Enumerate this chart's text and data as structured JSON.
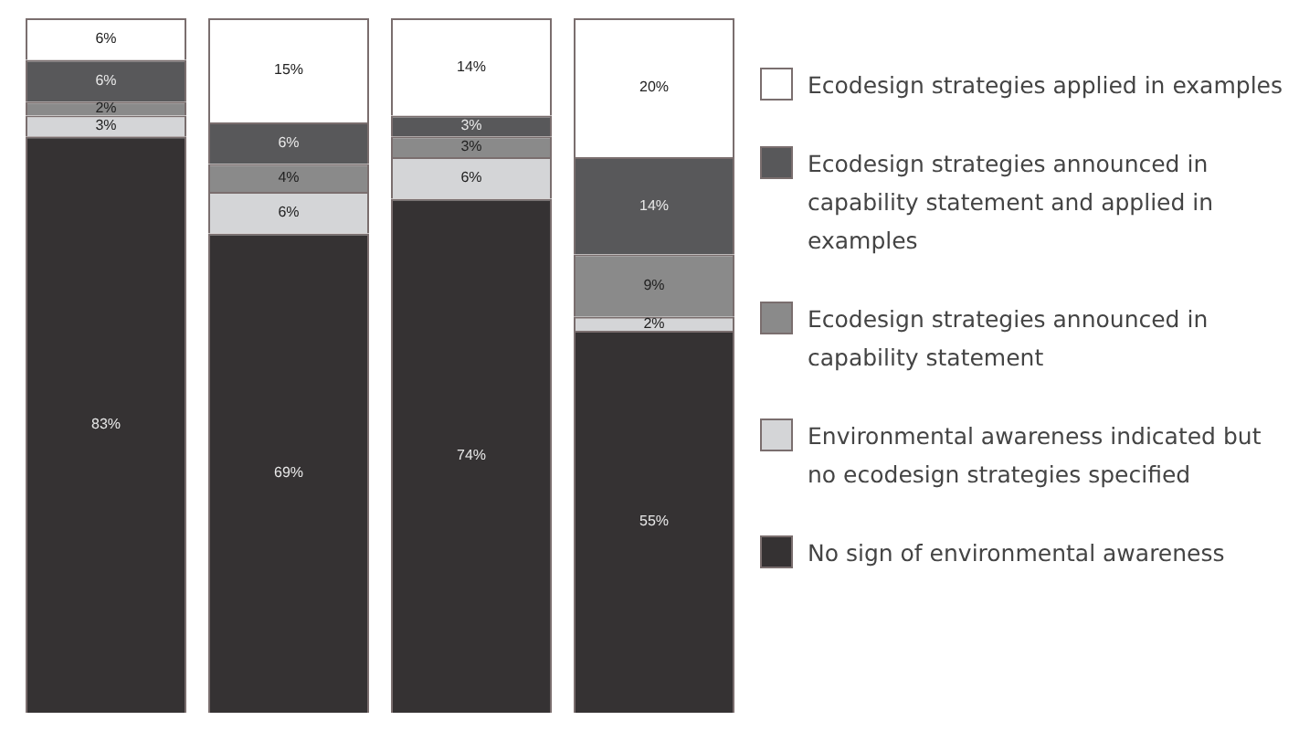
{
  "chart_data": {
    "type": "bar",
    "stacked": true,
    "categories": [
      null,
      null,
      null,
      null
    ],
    "ylim": [
      0,
      100
    ],
    "legend": "right",
    "series": [
      {
        "name": "No sign of environmental awareness",
        "color": "#353233",
        "values": [
          83,
          69,
          74,
          55
        ],
        "value_labels": [
          "83%",
          "69%",
          "74%",
          "55%"
        ]
      },
      {
        "name": "Environmental awareness indicated but no ecodesign strategies specified",
        "color": "#d4d5d7",
        "values": [
          3,
          6,
          6,
          2
        ],
        "value_labels": [
          "3%",
          "6%",
          "6%",
          "2%"
        ]
      },
      {
        "name": "Ecodesign strategies announced in capability statement",
        "color": "#8a8a8a",
        "values": [
          2,
          4,
          3,
          9
        ],
        "value_labels": [
          "2%",
          "4%",
          "3%",
          "9%"
        ]
      },
      {
        "name": "Ecodesign strategies announced in capability statement and applied in examples",
        "color": "#58585a",
        "values": [
          6,
          6,
          3,
          14
        ],
        "value_labels": [
          "6%",
          "6%",
          "3%",
          "14%"
        ]
      },
      {
        "name": "Ecodesign strategies applied in examples",
        "color": "#ffffff",
        "values": [
          6,
          15,
          14,
          20
        ],
        "value_labels": [
          "6%",
          "15%",
          "14%",
          "20%"
        ]
      }
    ]
  }
}
